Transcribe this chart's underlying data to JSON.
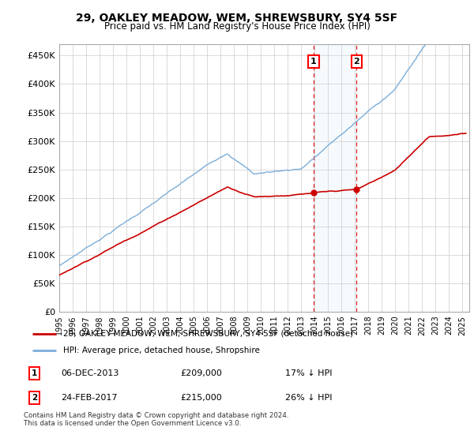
{
  "title": "29, OAKLEY MEADOW, WEM, SHREWSBURY, SY4 5SF",
  "subtitle": "Price paid vs. HM Land Registry's House Price Index (HPI)",
  "yticks": [
    0,
    50000,
    100000,
    150000,
    200000,
    250000,
    300000,
    350000,
    400000,
    450000
  ],
  "ytick_labels": [
    "£0",
    "£50K",
    "£100K",
    "£150K",
    "£200K",
    "£250K",
    "£300K",
    "£350K",
    "£400K",
    "£450K"
  ],
  "xmin": 1995.0,
  "xmax": 2025.5,
  "ymin": 0,
  "ymax": 470000,
  "hpi_color": "#7aadda",
  "price_color": "#cc0000",
  "background_color": "#ffffff",
  "grid_color": "#cccccc",
  "sale1_date": "06-DEC-2013",
  "sale1_price": 209000,
  "sale1_label": "17% ↓ HPI",
  "sale1_x": 2013.92,
  "sale2_date": "24-FEB-2017",
  "sale2_price": 215000,
  "sale2_label": "26% ↓ HPI",
  "sale2_x": 2017.12,
  "legend_line1": "29, OAKLEY MEADOW, WEM, SHREWSBURY, SY4 5SF (detached house)",
  "legend_line2": "HPI: Average price, detached house, Shropshire",
  "footnote": "Contains HM Land Registry data © Crown copyright and database right 2024.\nThis data is licensed under the Open Government Licence v3.0.",
  "shading_alpha": 0.15,
  "shading_color": "#c8dff0"
}
